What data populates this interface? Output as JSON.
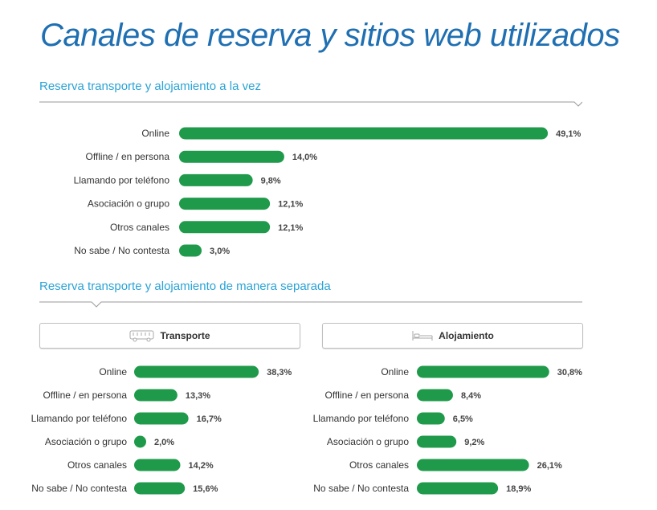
{
  "page": {
    "title": "Canales de reserva y sitios web utilizados",
    "section1_title": "Reserva transporte y alojamiento a la vez",
    "section2_title": "Reserva transporte y alojamiento de manera separada",
    "tab_transport": "Transporte",
    "tab_accommodation": "Alojamiento",
    "bar_color": "#1f9a4a",
    "title_color": "#1f6fb2",
    "section_color": "#2aa3d6",
    "transport_icon": "bus-icon",
    "accommodation_icon": "bed-icon"
  },
  "chart_data": [
    {
      "type": "bar",
      "orientation": "horizontal",
      "title": "Reserva transporte y alojamiento a la vez",
      "categories": [
        "Online",
        "Offline / en persona",
        "Llamando por teléfono",
        "Asociación o grupo",
        "Otros canales",
        "No sabe / No contesta"
      ],
      "values": [
        49.1,
        14.0,
        9.8,
        12.1,
        12.1,
        3.0
      ],
      "value_labels": [
        "49,1%",
        "14,0%",
        "9,8%",
        "12,1%",
        "12,1%",
        "3,0%"
      ],
      "unit": "%"
    },
    {
      "type": "bar",
      "orientation": "horizontal",
      "title": "Transporte",
      "categories": [
        "Online",
        "Offline / en persona",
        "Llamando por teléfono",
        "Asociación o grupo",
        "Otros canales",
        "No sabe / No contesta"
      ],
      "values": [
        38.3,
        13.3,
        16.7,
        2.0,
        14.2,
        15.6
      ],
      "value_labels": [
        "38,3%",
        "13,3%",
        "16,7%",
        "2,0%",
        "14,2%",
        "15,6%"
      ],
      "unit": "%"
    },
    {
      "type": "bar",
      "orientation": "horizontal",
      "title": "Alojamiento",
      "categories": [
        "Online",
        "Offline / en persona",
        "Llamando por teléfono",
        "Asociación o grupo",
        "Otros canales",
        "No sabe / No contesta"
      ],
      "values": [
        30.8,
        8.4,
        6.5,
        9.2,
        26.1,
        18.9
      ],
      "value_labels": [
        "30,8%",
        "8,4%",
        "6,5%",
        "9,2%",
        "26,1%",
        "18,9%"
      ],
      "unit": "%"
    }
  ]
}
